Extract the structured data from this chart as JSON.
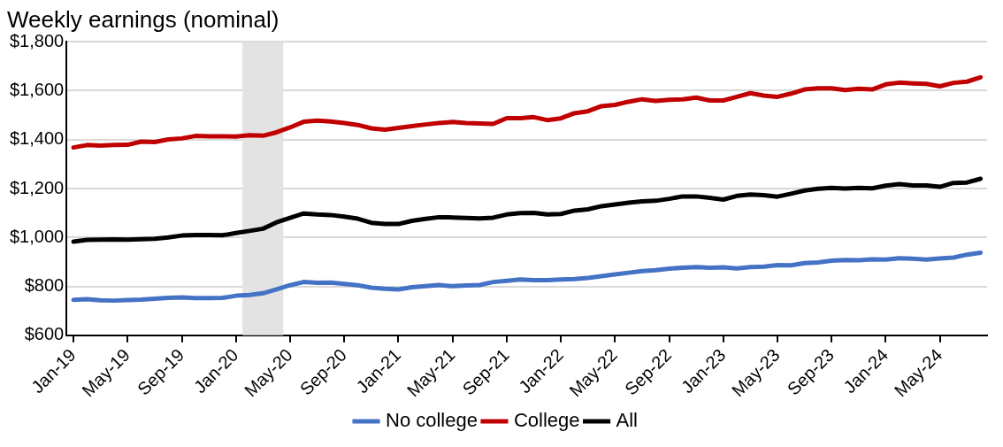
{
  "chart_data": {
    "type": "line",
    "title": "Weekly earnings (nominal)",
    "x": [
      "2019-01",
      "2019-02",
      "2019-03",
      "2019-04",
      "2019-05",
      "2019-06",
      "2019-07",
      "2019-08",
      "2019-09",
      "2019-10",
      "2019-11",
      "2019-12",
      "2020-01",
      "2020-02",
      "2020-03",
      "2020-04",
      "2020-05",
      "2020-06",
      "2020-07",
      "2020-08",
      "2020-09",
      "2020-10",
      "2020-11",
      "2020-12",
      "2021-01",
      "2021-02",
      "2021-03",
      "2021-04",
      "2021-05",
      "2021-06",
      "2021-07",
      "2021-08",
      "2021-09",
      "2021-10",
      "2021-11",
      "2021-12",
      "2022-01",
      "2022-02",
      "2022-03",
      "2022-04",
      "2022-05",
      "2022-06",
      "2022-07",
      "2022-08",
      "2022-09",
      "2022-10",
      "2022-11",
      "2022-12",
      "2023-01",
      "2023-02",
      "2023-03",
      "2023-04",
      "2023-05",
      "2023-06",
      "2023-07",
      "2023-08",
      "2023-09",
      "2023-10",
      "2023-11",
      "2023-12",
      "2024-01",
      "2024-02",
      "2024-03",
      "2024-04",
      "2024-05",
      "2024-06",
      "2024-07",
      "2024-08"
    ],
    "series": [
      {
        "name": "No college",
        "color": "#4472c4",
        "values": [
          745,
          748,
          743,
          742,
          744,
          746,
          750,
          753,
          755,
          752,
          752,
          753,
          762,
          765,
          772,
          788,
          805,
          818,
          815,
          816,
          810,
          805,
          795,
          790,
          788,
          797,
          801,
          806,
          801,
          804,
          806,
          818,
          823,
          828,
          826,
          826,
          828,
          830,
          835,
          842,
          849,
          856,
          863,
          866,
          873,
          876,
          879,
          876,
          878,
          874,
          879,
          881,
          887,
          886,
          895,
          898,
          905,
          908,
          907,
          911,
          910,
          915,
          913,
          910,
          914,
          918,
          930,
          938
        ]
      },
      {
        "name": "College",
        "color": "#c00000",
        "values": [
          1368,
          1378,
          1376,
          1378,
          1379,
          1392,
          1390,
          1401,
          1405,
          1415,
          1414,
          1414,
          1413,
          1418,
          1416,
          1430,
          1450,
          1473,
          1478,
          1474,
          1468,
          1460,
          1446,
          1441,
          1448,
          1455,
          1462,
          1468,
          1472,
          1468,
          1466,
          1464,
          1488,
          1488,
          1492,
          1480,
          1487,
          1508,
          1516,
          1537,
          1542,
          1555,
          1565,
          1558,
          1563,
          1565,
          1572,
          1560,
          1560,
          1575,
          1590,
          1580,
          1575,
          1588,
          1605,
          1610,
          1610,
          1603,
          1608,
          1605,
          1626,
          1633,
          1630,
          1628,
          1618,
          1632,
          1637,
          1655
        ]
      },
      {
        "name": "All",
        "color": "#000000",
        "values": [
          983,
          990,
          991,
          992,
          991,
          993,
          995,
          1000,
          1008,
          1010,
          1010,
          1009,
          1018,
          1027,
          1036,
          1062,
          1080,
          1098,
          1094,
          1092,
          1085,
          1077,
          1060,
          1055,
          1055,
          1068,
          1076,
          1083,
          1082,
          1080,
          1078,
          1081,
          1094,
          1100,
          1101,
          1094,
          1096,
          1110,
          1115,
          1128,
          1135,
          1142,
          1148,
          1150,
          1158,
          1168,
          1168,
          1162,
          1155,
          1170,
          1176,
          1173,
          1167,
          1179,
          1192,
          1199,
          1203,
          1200,
          1203,
          1201,
          1212,
          1218,
          1213,
          1213,
          1207,
          1223,
          1225,
          1240
        ]
      }
    ],
    "xlim": [
      "2018-12-16",
      "2024-08-16"
    ],
    "xticks": [
      {
        "value": "2019-01",
        "label": "Jan-19"
      },
      {
        "value": "2019-05",
        "label": "May-19"
      },
      {
        "value": "2019-09",
        "label": "Sep-19"
      },
      {
        "value": "2020-01",
        "label": "Jan-20"
      },
      {
        "value": "2020-05",
        "label": "May-20"
      },
      {
        "value": "2020-09",
        "label": "Sep-20"
      },
      {
        "value": "2021-01",
        "label": "Jan-21"
      },
      {
        "value": "2021-05",
        "label": "May-21"
      },
      {
        "value": "2021-09",
        "label": "Sep-21"
      },
      {
        "value": "2022-01",
        "label": "Jan-22"
      },
      {
        "value": "2022-05",
        "label": "May-22"
      },
      {
        "value": "2022-09",
        "label": "Sep-22"
      },
      {
        "value": "2023-01",
        "label": "Jan-23"
      },
      {
        "value": "2023-05",
        "label": "May-23"
      },
      {
        "value": "2023-09",
        "label": "Sep-23"
      },
      {
        "value": "2024-01",
        "label": "Jan-24"
      },
      {
        "value": "2024-05",
        "label": "May-24"
      }
    ],
    "ylim": [
      600,
      1800
    ],
    "yticks": [
      {
        "value": 600,
        "label": "$600"
      },
      {
        "value": 800,
        "label": "$800"
      },
      {
        "value": 1000,
        "label": "$1,000"
      },
      {
        "value": 1200,
        "label": "$1,200"
      },
      {
        "value": 1400,
        "label": "$1,400"
      },
      {
        "value": 1600,
        "label": "$1,600"
      },
      {
        "value": 1800,
        "label": "$1,800"
      }
    ],
    "bands": [
      {
        "axis": "x",
        "from": "2020-01-16",
        "to": "2020-04-16",
        "color": "#e3e3e3"
      }
    ],
    "grid": "y",
    "legend": "bottom",
    "marker": "none",
    "line_style": "solid"
  }
}
